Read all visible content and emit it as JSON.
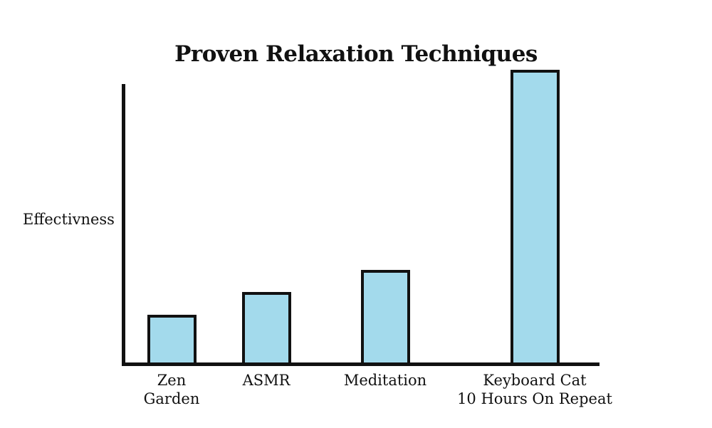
{
  "chart_data": {
    "type": "bar",
    "title": "Proven Relaxation Techniques",
    "ylabel": "Effectivness",
    "xlabel": "",
    "categories": [
      "Zen\nGarden",
      "ASMR",
      "Meditation",
      "Keyboard Cat\n10 Hours On Repeat"
    ],
    "values": [
      18,
      26,
      34,
      105
    ],
    "value_note": "no numeric ticks shown; values estimated as percent of y-axis height, last bar extends above the top of the y-axis",
    "ylim": [
      0,
      100
    ],
    "grid": false,
    "legend": false,
    "colors": {
      "bar_fill": "#A3DAEC",
      "bar_border": "#111111",
      "axis": "#111111",
      "text": "#111111",
      "background": "#FFFFFF"
    }
  }
}
